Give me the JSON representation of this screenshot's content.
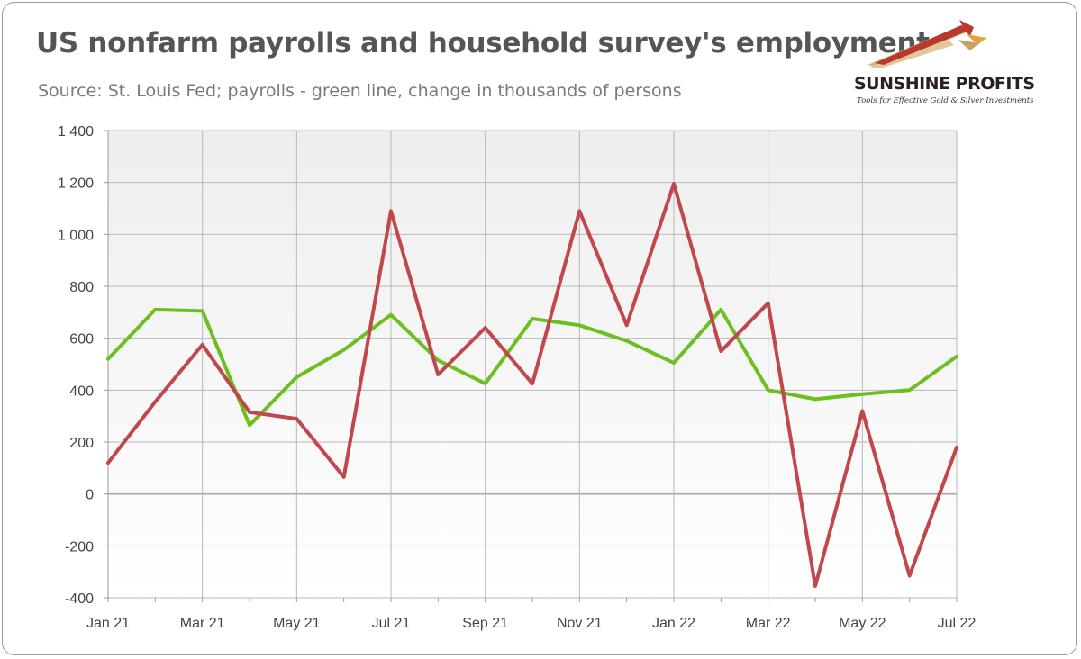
{
  "title": "US nonfarm payrolls and household survey's employment",
  "subtitle": "Source: St. Louis Fed; payrolls - green line, change in thousands of persons",
  "logo": {
    "name": "SUNSHINE PROFITS",
    "tagline": "Tools for Effective Gold & Silver Investments",
    "icon": "rising-arrows-icon"
  },
  "colors": {
    "payrolls": "#6cbf1f",
    "household": "#c0474c",
    "grid": "#b8b8b8",
    "plot_bg_top": "#f0f0f0",
    "plot_bg_bottom": "#ffffff"
  },
  "chart_data": {
    "type": "line",
    "title": "US nonfarm payrolls and household survey's employment",
    "subtitle": "Source: St. Louis Fed; payrolls - green line, change in thousands of persons",
    "xlabel": "",
    "ylabel": "",
    "ylim": [
      -400,
      1400
    ],
    "yticks": [
      -400,
      -200,
      0,
      200,
      400,
      600,
      800,
      1000,
      1200,
      1400
    ],
    "ytick_labels": [
      "-400",
      "-200",
      "0",
      "200",
      "400",
      "600",
      "800",
      "1 000",
      "1 200",
      "1 400"
    ],
    "x": [
      "Jan 21",
      "Feb 21",
      "Mar 21",
      "Apr 21",
      "May 21",
      "Jun 21",
      "Jul 21",
      "Aug 21",
      "Sep 21",
      "Oct 21",
      "Nov 21",
      "Dec 21",
      "Jan 22",
      "Feb 22",
      "Mar 22",
      "Apr 22",
      "May 22",
      "Jun 22",
      "Jul 22"
    ],
    "xtick_labels": [
      "Jan 21",
      "Mar 21",
      "May 21",
      "Jul 21",
      "Sep 21",
      "Nov 21",
      "Jan 22",
      "Mar 22",
      "May 22",
      "Jul 22"
    ],
    "grid": true,
    "legend": "none",
    "series": [
      {
        "key": "payrolls",
        "color": "#6cbf1f",
        "values": [
          520,
          710,
          705,
          265,
          450,
          555,
          690,
          515,
          425,
          675,
          650,
          590,
          505,
          710,
          400,
          365,
          385,
          400,
          530
        ]
      },
      {
        "key": "household",
        "color": "#c0474c",
        "values": [
          120,
          355,
          575,
          315,
          290,
          65,
          1090,
          460,
          640,
          425,
          1090,
          650,
          1195,
          550,
          735,
          -355,
          320,
          -315,
          180
        ]
      }
    ]
  }
}
